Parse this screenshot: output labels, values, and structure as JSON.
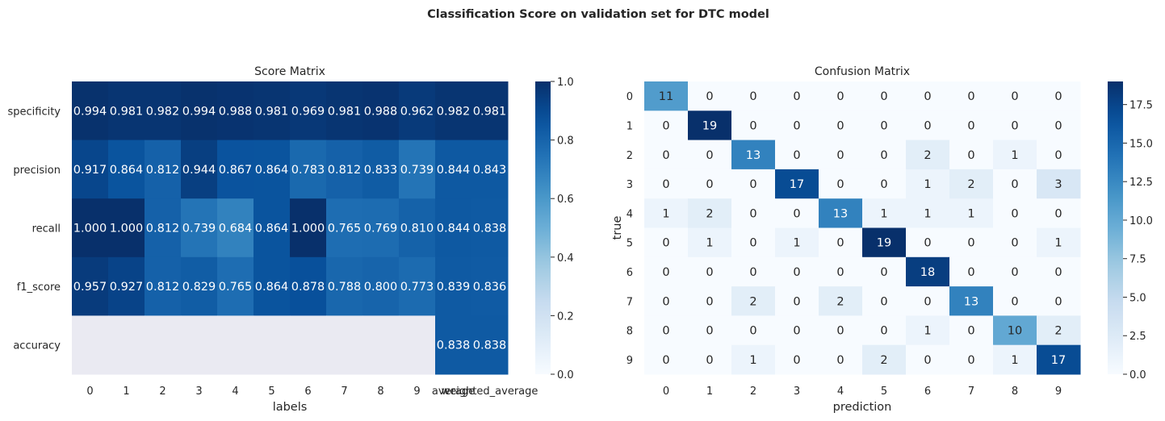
{
  "suptitle": "Classification Score on validation set for DTC model",
  "colormap": {
    "stops": [
      "#f7fbff",
      "#deebf7",
      "#c6dbef",
      "#9ecae1",
      "#6baed6",
      "#4292c6",
      "#2171b5",
      "#08519c",
      "#08306b"
    ],
    "nan_color": "#eaeaf2"
  },
  "chart_data": [
    {
      "type": "heatmap",
      "title": "Score Matrix",
      "xlabel": "labels",
      "ylabel": "",
      "x_categories": [
        "0",
        "1",
        "2",
        "3",
        "4",
        "5",
        "6",
        "7",
        "8",
        "9",
        "average",
        "weighted_average"
      ],
      "y_categories": [
        "specificity",
        "precision",
        "recall",
        "f1_score",
        "accuracy"
      ],
      "values": [
        [
          0.994,
          0.981,
          0.982,
          0.994,
          0.988,
          0.981,
          0.969,
          0.981,
          0.988,
          0.962,
          0.982,
          0.981
        ],
        [
          0.917,
          0.864,
          0.812,
          0.944,
          0.867,
          0.864,
          0.783,
          0.812,
          0.833,
          0.739,
          0.844,
          0.843
        ],
        [
          1.0,
          1.0,
          0.812,
          0.739,
          0.684,
          0.864,
          1.0,
          0.765,
          0.769,
          0.81,
          0.844,
          0.838
        ],
        [
          0.957,
          0.927,
          0.812,
          0.829,
          0.765,
          0.864,
          0.878,
          0.788,
          0.8,
          0.773,
          0.839,
          0.836
        ],
        [
          null,
          null,
          null,
          null,
          null,
          null,
          null,
          null,
          null,
          null,
          0.838,
          0.838
        ]
      ],
      "value_format": "3f",
      "vmin": 0.0,
      "vmax": 1.0,
      "colorbar_ticks": [
        "0.0",
        "0.2",
        "0.4",
        "0.6",
        "0.8",
        "1.0"
      ]
    },
    {
      "type": "heatmap",
      "title": "Confusion Matrix",
      "xlabel": "prediction",
      "ylabel": "true",
      "x_categories": [
        "0",
        "1",
        "2",
        "3",
        "4",
        "5",
        "6",
        "7",
        "8",
        "9"
      ],
      "y_categories": [
        "0",
        "1",
        "2",
        "3",
        "4",
        "5",
        "6",
        "7",
        "8",
        "9"
      ],
      "values": [
        [
          11,
          0,
          0,
          0,
          0,
          0,
          0,
          0,
          0,
          0
        ],
        [
          0,
          19,
          0,
          0,
          0,
          0,
          0,
          0,
          0,
          0
        ],
        [
          0,
          0,
          13,
          0,
          0,
          0,
          2,
          0,
          1,
          0
        ],
        [
          0,
          0,
          0,
          17,
          0,
          0,
          1,
          2,
          0,
          3
        ],
        [
          1,
          2,
          0,
          0,
          13,
          1,
          1,
          1,
          0,
          0
        ],
        [
          0,
          1,
          0,
          1,
          0,
          19,
          0,
          0,
          0,
          1
        ],
        [
          0,
          0,
          0,
          0,
          0,
          0,
          18,
          0,
          0,
          0
        ],
        [
          0,
          0,
          2,
          0,
          2,
          0,
          0,
          13,
          0,
          0
        ],
        [
          0,
          0,
          0,
          0,
          0,
          0,
          1,
          0,
          10,
          2
        ],
        [
          0,
          0,
          1,
          0,
          0,
          2,
          0,
          0,
          1,
          17
        ]
      ],
      "value_format": "int",
      "vmin": 0,
      "vmax": 19,
      "colorbar_ticks": [
        "0.0",
        "2.5",
        "5.0",
        "7.5",
        "10.0",
        "12.5",
        "15.0",
        "17.5"
      ]
    }
  ]
}
